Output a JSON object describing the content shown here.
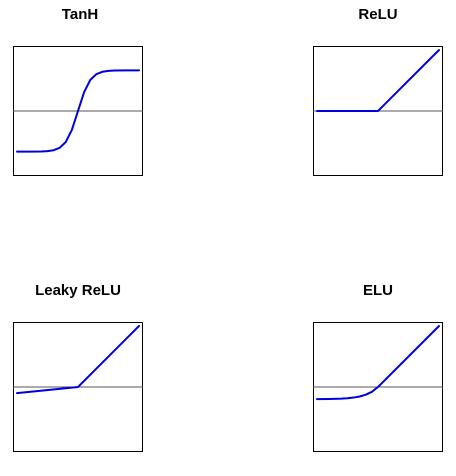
{
  "colors": {
    "curve": "#0000dd",
    "axis_line": "#555555",
    "frame": "#000000"
  },
  "chart_data": [
    {
      "type": "line",
      "title": "TanH",
      "xlabel": "",
      "ylabel": "",
      "xlim": [
        -5,
        5
      ],
      "ylim": [
        -1.5,
        1.5
      ],
      "x": [
        -5,
        -4,
        -3,
        -2.5,
        -2,
        -1.5,
        -1,
        -0.5,
        0,
        0.5,
        1,
        1.5,
        2,
        2.5,
        3,
        4,
        5
      ],
      "series": [
        {
          "values": [
            -0.9999,
            -0.9993,
            -0.9951,
            -0.9866,
            -0.964,
            -0.9051,
            -0.7616,
            -0.4621,
            0,
            0.4621,
            0.7616,
            0.9051,
            0.964,
            0.9866,
            0.9951,
            0.9993,
            0.9999
          ]
        }
      ],
      "grid": false
    },
    {
      "type": "line",
      "title": "ReLU",
      "xlabel": "",
      "ylabel": "",
      "xlim": [
        -5,
        5
      ],
      "ylim": [
        -5,
        5
      ],
      "x": [
        -5,
        0,
        5
      ],
      "series": [
        {
          "values": [
            0,
            0,
            5
          ]
        }
      ],
      "grid": false
    },
    {
      "type": "line",
      "title": "Leaky ReLU",
      "xlabel": "",
      "ylabel": "",
      "xlim": [
        -5,
        5
      ],
      "ylim": [
        -5,
        5
      ],
      "x": [
        -5,
        0,
        5
      ],
      "series": [
        {
          "values": [
            -0.5,
            0,
            5
          ]
        }
      ],
      "grid": false
    },
    {
      "type": "line",
      "title": "ELU",
      "xlabel": "",
      "ylabel": "",
      "xlim": [
        -5,
        5
      ],
      "ylim": [
        -5,
        5
      ],
      "x": [
        -5,
        -4,
        -3,
        -2.5,
        -2,
        -1.5,
        -1,
        -0.5,
        0,
        5
      ],
      "series": [
        {
          "values": [
            -0.9933,
            -0.9817,
            -0.9502,
            -0.9179,
            -0.8647,
            -0.7769,
            -0.6321,
            -0.3935,
            0,
            5
          ]
        }
      ],
      "grid": false
    }
  ]
}
